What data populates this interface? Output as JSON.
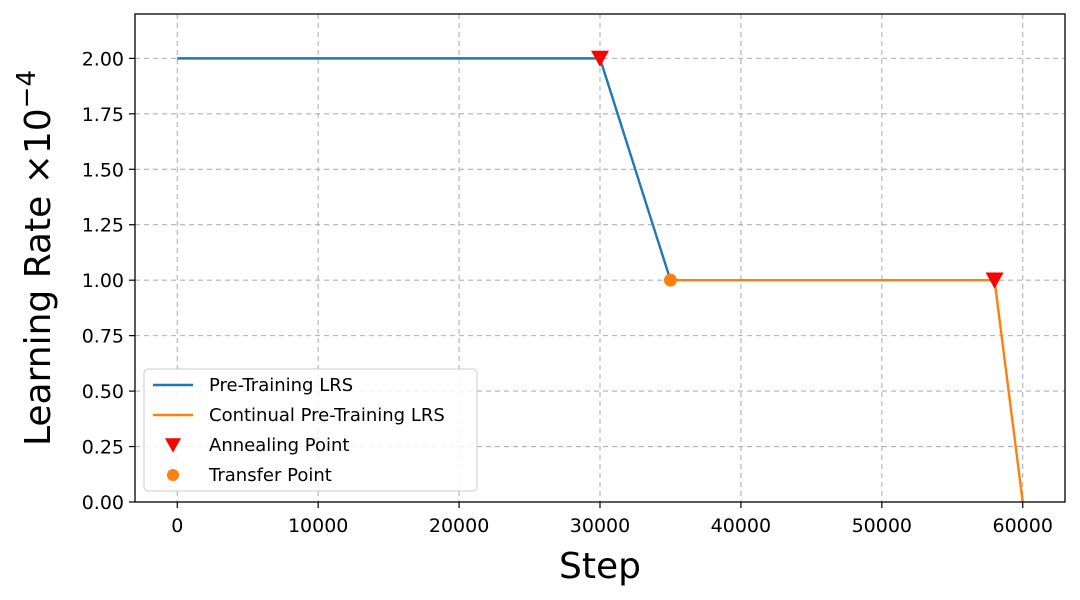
{
  "chart_data": {
    "type": "line",
    "title": "",
    "xlabel": "Step",
    "ylabel": "Learning Rate ×10",
    "ylabel_exponent": "−4",
    "xlim": [
      -3000,
      63000
    ],
    "ylim": [
      0,
      2.2
    ],
    "xticks": [
      0,
      10000,
      20000,
      30000,
      40000,
      50000,
      60000
    ],
    "xtick_labels": [
      "0",
      "10000",
      "20000",
      "30000",
      "40000",
      "50000",
      "60000"
    ],
    "yticks": [
      0,
      0.25,
      0.5,
      0.75,
      1.0,
      1.25,
      1.5,
      1.75,
      2.0
    ],
    "ytick_labels": [
      "0.00",
      "0.25",
      "0.50",
      "0.75",
      "1.00",
      "1.25",
      "1.50",
      "1.75",
      "2.00"
    ],
    "grid": true,
    "legend_position": "bottom-left",
    "series": [
      {
        "name": "Pre-Training LRS",
        "color": "#1f77b4",
        "x": [
          0,
          30000,
          35000
        ],
        "y": [
          2.0,
          2.0,
          1.0
        ]
      },
      {
        "name": "Continual Pre-Training LRS",
        "color": "#ff7f0e",
        "x": [
          35000,
          58000,
          60000
        ],
        "y": [
          1.0,
          1.0,
          0.0
        ]
      }
    ],
    "markers": [
      {
        "name": "Annealing Point",
        "shape": "triangle-down",
        "color": "#ff0000",
        "points": [
          {
            "x": 30000,
            "y": 2.0
          },
          {
            "x": 58000,
            "y": 1.0
          }
        ]
      },
      {
        "name": "Transfer Point",
        "shape": "circle",
        "color": "#ff7f0e",
        "points": [
          {
            "x": 35000,
            "y": 1.0
          }
        ]
      }
    ]
  }
}
